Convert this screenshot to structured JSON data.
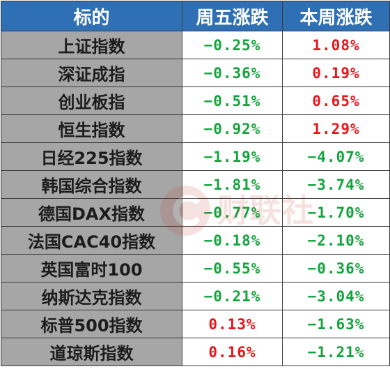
{
  "header": {
    "col_name": "标的",
    "col_fri": "周五涨跌",
    "col_week": "本周涨跌"
  },
  "colors": {
    "header_bg": "#2f6fb3",
    "name_bg": "#a6a6a6",
    "up": "#e8161b",
    "down": "#13a33c"
  },
  "rows": [
    {
      "name": "上证指数",
      "fri": "−0.25%",
      "week": "1.08%"
    },
    {
      "name": "深证成指",
      "fri": "−0.36%",
      "week": "0.19%"
    },
    {
      "name": "创业板指",
      "fri": "−0.51%",
      "week": "0.65%"
    },
    {
      "name": "恒生指数",
      "fri": "−0.92%",
      "week": "1.29%"
    },
    {
      "name": "日经225指数",
      "fri": "−1.19%",
      "week": "−4.07%"
    },
    {
      "name": "韩国综合指数",
      "fri": "−1.81%",
      "week": "−3.74%"
    },
    {
      "name": "德国DAX指数",
      "fri": "−0.77%",
      "week": "−1.70%"
    },
    {
      "name": "法国CAC40指数",
      "fri": "−0.18%",
      "week": "−2.10%"
    },
    {
      "name": "英国富时100",
      "fri": "−0.55%",
      "week": "−0.36%"
    },
    {
      "name": "纳斯达克指数",
      "fri": "−0.21%",
      "week": "−3.04%"
    },
    {
      "name": "标普500指数",
      "fri": "0.13%",
      "week": "−1.63%"
    },
    {
      "name": "道琼斯指数",
      "fri": "0.16%",
      "week": "−1.21%"
    }
  ],
  "watermark": {
    "text": "财联社",
    "icon": "cls-logo-icon"
  }
}
